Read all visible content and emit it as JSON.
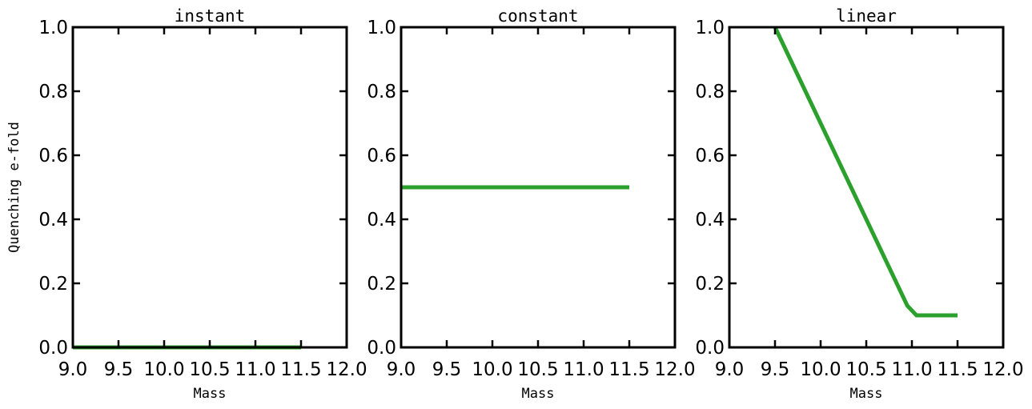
{
  "chart_data": [
    {
      "type": "line",
      "title": "instant",
      "xlabel": "Mass",
      "ylabel": "Quenching e-fold",
      "xlim": [
        9.0,
        12.0
      ],
      "ylim": [
        0.0,
        1.0
      ],
      "xticks": [
        "9.0",
        "9.5",
        "10.0",
        "10.5",
        "11.0",
        "11.5",
        "12.0"
      ],
      "yticks": [
        "0.0",
        "0.2",
        "0.4",
        "0.6",
        "0.8",
        "1.0"
      ],
      "grid": false,
      "series": [
        {
          "color": "#2ca02c",
          "x": [
            9.0,
            11.5
          ],
          "y": [
            0.0,
            0.0
          ]
        }
      ]
    },
    {
      "type": "line",
      "title": "constant",
      "xlabel": "Mass",
      "ylabel": "",
      "xlim": [
        9.0,
        12.0
      ],
      "ylim": [
        0.0,
        1.0
      ],
      "xticks": [
        "9.0",
        "9.5",
        "10.0",
        "10.5",
        "11.0",
        "11.5",
        "12.0"
      ],
      "yticks": [
        "0.0",
        "0.2",
        "0.4",
        "0.6",
        "0.8",
        "1.0"
      ],
      "grid": false,
      "series": [
        {
          "color": "#2ca02c",
          "x": [
            9.0,
            11.5
          ],
          "y": [
            0.5,
            0.5
          ]
        }
      ]
    },
    {
      "type": "line",
      "title": "linear",
      "xlabel": "Mass",
      "ylabel": "",
      "xlim": [
        9.0,
        12.0
      ],
      "ylim": [
        0.0,
        1.0
      ],
      "xticks": [
        "9.0",
        "9.5",
        "10.0",
        "10.5",
        "11.0",
        "11.5",
        "12.0"
      ],
      "yticks": [
        "0.0",
        "0.2",
        "0.4",
        "0.6",
        "0.8",
        "1.0"
      ],
      "grid": false,
      "series": [
        {
          "color": "#2ca02c",
          "x": [
            9.5,
            10.95,
            11.05,
            11.5
          ],
          "y": [
            1.0,
            0.13,
            0.1,
            0.1
          ]
        }
      ]
    }
  ]
}
